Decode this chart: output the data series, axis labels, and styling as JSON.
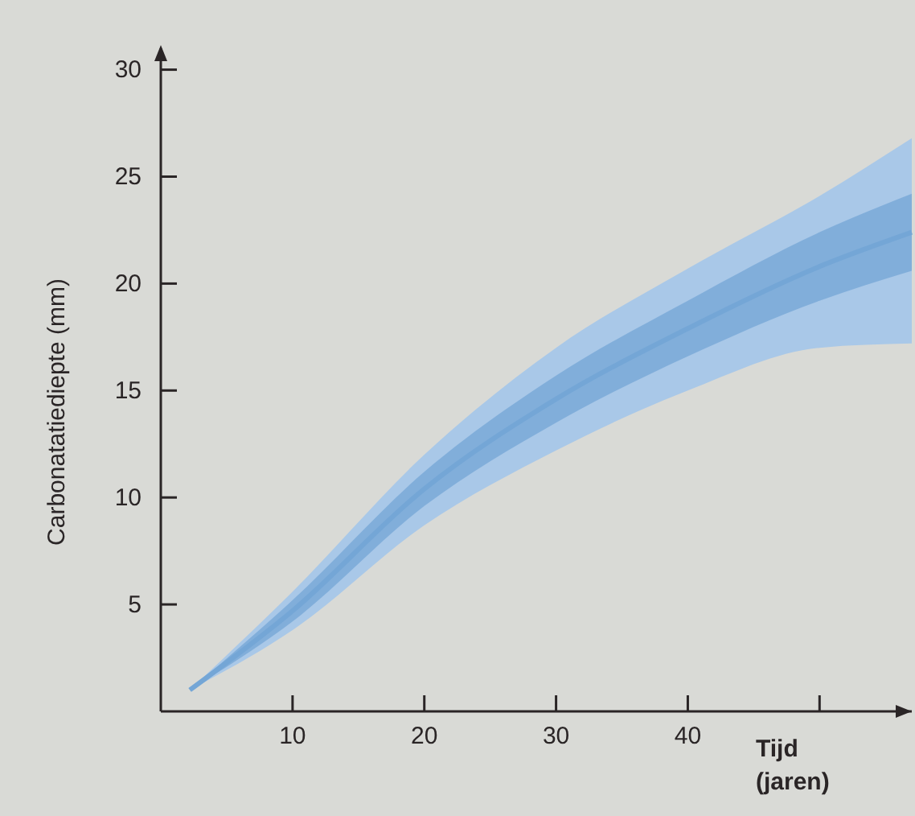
{
  "chart_data": {
    "type": "line",
    "xlabel": "Tijd (jaren)",
    "ylabel": "Carbonatatiediepte (mm)",
    "xlim": [
      0,
      57
    ],
    "ylim": [
      0,
      31
    ],
    "xticks": [
      10,
      20,
      30,
      40,
      {
        "value": 50,
        "label": null
      }
    ],
    "yticks": [
      5,
      10,
      15,
      20,
      25,
      30
    ],
    "grid": false,
    "series": [
      {
        "color": "#a9c8e8",
        "x": [
          2.2,
          10,
          20,
          30,
          40,
          50,
          57
        ],
        "values": [
          null,
          null,
          null,
          null,
          null,
          null,
          null
        ],
        "lower": [
          1.0,
          3.8,
          8.7,
          12.2,
          15.0,
          17.0,
          17.2
        ],
        "upper": [
          1.0,
          5.6,
          12.0,
          17.0,
          20.7,
          24.1,
          26.8
        ]
      },
      {
        "color": "#74a6d6",
        "x": [
          2.2,
          10,
          20,
          30,
          40,
          50,
          57
        ],
        "values": [
          1.0,
          4.7,
          10.4,
          14.6,
          17.9,
          20.8,
          22.4
        ],
        "lower": [
          1.0,
          4.2,
          9.6,
          13.5,
          16.6,
          19.2,
          20.6
        ],
        "upper": [
          1.0,
          5.2,
          11.2,
          15.7,
          19.2,
          22.4,
          24.2
        ]
      }
    ]
  }
}
